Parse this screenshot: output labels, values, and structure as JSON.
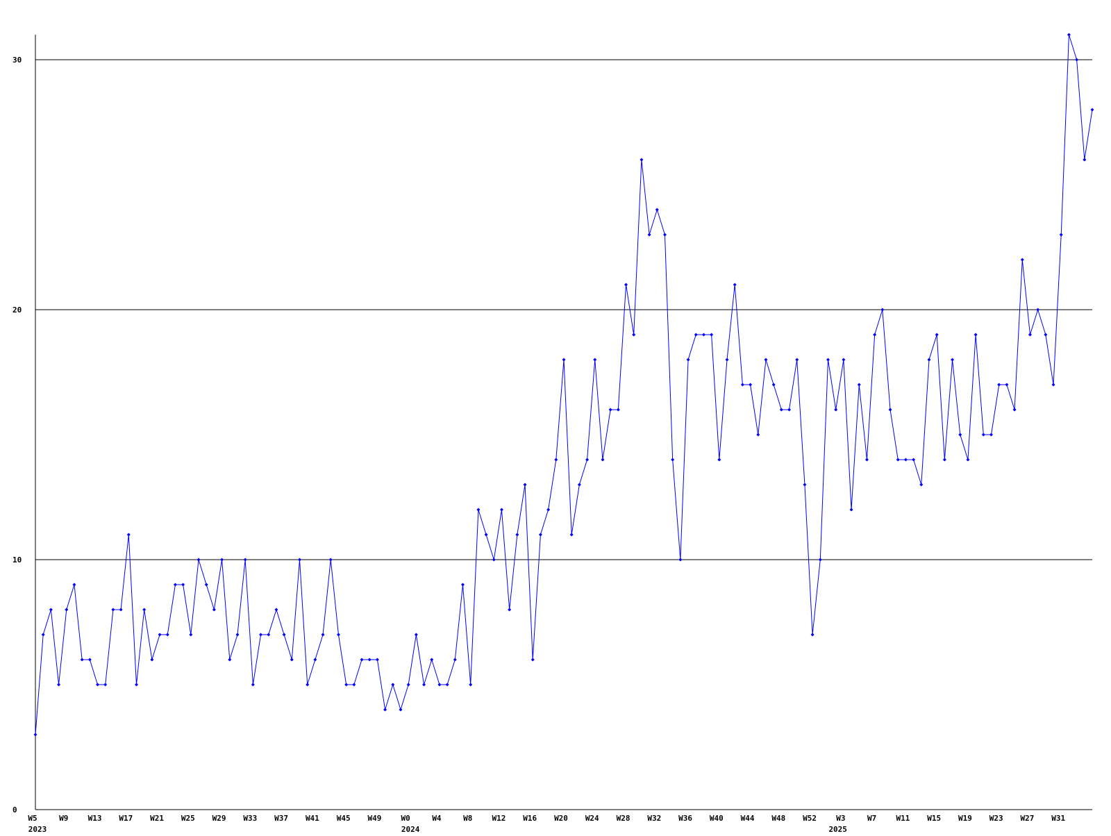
{
  "chart_data": {
    "type": "line",
    "color": "#0000ff",
    "grid": true,
    "ylim": [
      0,
      31
    ],
    "yticks": [
      0,
      10,
      20,
      30
    ],
    "categories": [
      "W5",
      null,
      null,
      null,
      "W9",
      null,
      null,
      null,
      "W13",
      null,
      null,
      null,
      "W17",
      null,
      null,
      null,
      "W21",
      null,
      null,
      null,
      "W25",
      null,
      null,
      null,
      "W29",
      null,
      null,
      null,
      "W33",
      null,
      null,
      null,
      "W37",
      null,
      null,
      null,
      "W41",
      null,
      null,
      null,
      "W45",
      null,
      null,
      null,
      "W49",
      null,
      null,
      null,
      "W0",
      null,
      null,
      null,
      "W4",
      null,
      null,
      null,
      "W8",
      null,
      null,
      null,
      "W12",
      null,
      null,
      null,
      "W16",
      null,
      null,
      null,
      "W20",
      null,
      null,
      null,
      "W24",
      null,
      null,
      null,
      "W28",
      null,
      null,
      null,
      "W32",
      null,
      null,
      null,
      "W36",
      null,
      null,
      null,
      "W40",
      null,
      null,
      null,
      "W44",
      null,
      null,
      null,
      "W48",
      null,
      null,
      null,
      "W52",
      null,
      null,
      null,
      "W3",
      null,
      null,
      null,
      "W7",
      null,
      null,
      null,
      "W11",
      null,
      null,
      null,
      "W15",
      null,
      null,
      null,
      "W19",
      null,
      null,
      null,
      "W23",
      null,
      null,
      null,
      "W27",
      null,
      null,
      null,
      "W31",
      null,
      null,
      null,
      null
    ],
    "year_categories": [
      "2023",
      null,
      null,
      null,
      null,
      null,
      null,
      null,
      null,
      null,
      null,
      null,
      null,
      null,
      null,
      null,
      null,
      null,
      null,
      null,
      null,
      null,
      null,
      null,
      null,
      null,
      null,
      null,
      null,
      null,
      null,
      null,
      null,
      null,
      null,
      null,
      null,
      null,
      null,
      null,
      null,
      null,
      null,
      null,
      null,
      null,
      null,
      null,
      "2024",
      null,
      null,
      null,
      null,
      null,
      null,
      null,
      null,
      null,
      null,
      null,
      null,
      null,
      null,
      null,
      null,
      null,
      null,
      null,
      null,
      null,
      null,
      null,
      null,
      null,
      null,
      null,
      null,
      null,
      null,
      null,
      null,
      null,
      null,
      null,
      null,
      null,
      null,
      null,
      null,
      null,
      null,
      null,
      null,
      null,
      null,
      null,
      null,
      null,
      null,
      null,
      null,
      null,
      null,
      "2025",
      null,
      null,
      null,
      null,
      null,
      null,
      null,
      null,
      null,
      null,
      null,
      null,
      null,
      null,
      null,
      null,
      null,
      null,
      null,
      null,
      null,
      null,
      null,
      null,
      null,
      null,
      null,
      null,
      null,
      null,
      null,
      null,
      null,
      null
    ],
    "values": [
      3,
      7,
      8,
      5,
      8,
      9,
      6,
      6,
      5,
      5,
      8,
      8,
      11,
      5,
      8,
      6,
      7,
      7,
      9,
      9,
      7,
      10,
      9,
      8,
      10,
      6,
      7,
      10,
      5,
      7,
      7,
      8,
      7,
      6,
      10,
      5,
      6,
      7,
      10,
      7,
      5,
      5,
      6,
      6,
      6,
      4,
      5,
      4,
      5,
      7,
      5,
      6,
      5,
      5,
      6,
      9,
      5,
      12,
      11,
      10,
      12,
      8,
      11,
      13,
      6,
      11,
      12,
      14,
      18,
      11,
      13,
      14,
      18,
      14,
      16,
      16,
      21,
      19,
      26,
      23,
      24,
      23,
      14,
      10,
      18,
      19,
      19,
      19,
      14,
      18,
      21,
      17,
      17,
      15,
      18,
      17,
      16,
      16,
      18,
      13,
      7,
      10,
      18,
      16,
      18,
      12,
      17,
      14,
      19,
      20,
      16,
      14,
      14,
      14,
      13,
      18,
      19,
      14,
      18,
      15,
      14,
      19,
      15,
      15,
      17,
      17,
      16,
      22,
      19,
      20,
      19,
      17,
      23,
      31,
      30,
      26,
      28
    ]
  }
}
